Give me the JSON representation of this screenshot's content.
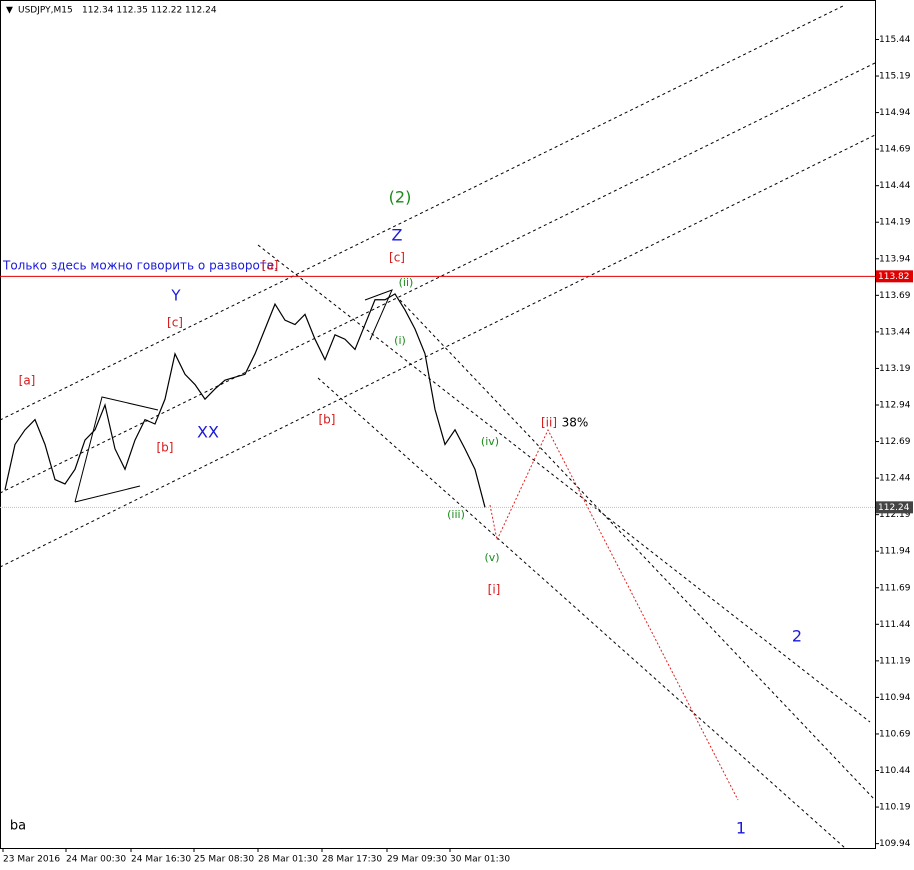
{
  "header": {
    "symbol": "USDJPY,M15",
    "quote": "112.34 112.35 112.22 112.24"
  },
  "chart_data": {
    "type": "line",
    "x": [
      0.5,
      1.5,
      2.5,
      3.5,
      4.5,
      5.5,
      6.5,
      7.5,
      8.5,
      9.5,
      10.5,
      11.5,
      12.5,
      13.5,
      14.5,
      15.5,
      16.5,
      17.5,
      18.5,
      19.5,
      20.5,
      21.5,
      22.5,
      23.5,
      24.5,
      25.5,
      26.5,
      27.5,
      28.5,
      29.5,
      30.5,
      31.5,
      32.5,
      33.5,
      34.5,
      35.5,
      36.5,
      37.5,
      38.5,
      39.5,
      40.5,
      41.5,
      42.5,
      43.5,
      44.5,
      45.5,
      46.5,
      47.5,
      48.5
    ],
    "series": [
      {
        "name": "USDJPY,M15",
        "color": "#000000",
        "values": [
          112.36,
          112.67,
          112.77,
          112.84,
          112.67,
          112.43,
          112.4,
          112.5,
          112.7,
          112.77,
          112.94,
          112.64,
          112.5,
          112.7,
          112.84,
          112.81,
          112.98,
          113.29,
          113.15,
          113.08,
          112.98,
          113.05,
          113.11,
          113.13,
          113.15,
          113.29,
          113.46,
          113.63,
          113.52,
          113.49,
          113.56,
          113.39,
          113.25,
          113.42,
          113.39,
          113.32,
          113.49,
          113.66,
          113.66,
          113.7,
          113.59,
          113.46,
          113.29,
          112.91,
          112.67,
          112.77,
          112.64,
          112.5,
          112.24
        ]
      }
    ],
    "xlim": [
      0,
      87.5
    ],
    "xticks": [
      {
        "value": 0.3,
        "label": "23 Mar 2016"
      },
      {
        "value": 6.6,
        "label": "24 Mar 00:30"
      },
      {
        "value": 13.1,
        "label": "24 Mar 16:30"
      },
      {
        "value": 19.4,
        "label": "25 Mar 08:30"
      },
      {
        "value": 25.8,
        "label": "28 Mar 01:30"
      },
      {
        "value": 32.2,
        "label": "28 Mar 17:30"
      },
      {
        "value": 38.7,
        "label": "29 Mar 09:30"
      },
      {
        "value": 45,
        "label": "30 Mar 01:30"
      }
    ],
    "ylim": [
      109.91,
      115.71
    ],
    "yticks": [
      115.44,
      115.19,
      114.94,
      114.69,
      114.44,
      114.19,
      113.94,
      113.69,
      113.44,
      113.19,
      112.94,
      112.69,
      112.44,
      112.19,
      111.94,
      111.69,
      111.44,
      111.19,
      110.94,
      110.69,
      110.44,
      110.19,
      109.94
    ],
    "price_lines": [
      {
        "value": 113.82,
        "color": "#e00000"
      },
      {
        "value": 112.24,
        "color": "#c0c0c0"
      }
    ],
    "annotations": [
      "(2)",
      "Z",
      "[c]",
      "Y",
      "[c]",
      "[a]",
      "[b]",
      "XX",
      "[b]",
      "(ii)",
      "(i)",
      "(iv)",
      "(iii)",
      "(v)",
      "[i]",
      "[ii]",
      "38%",
      "2",
      "1",
      "ba",
      "Только здесь можно говорить о развороте.",
      "[a]"
    ]
  }
}
